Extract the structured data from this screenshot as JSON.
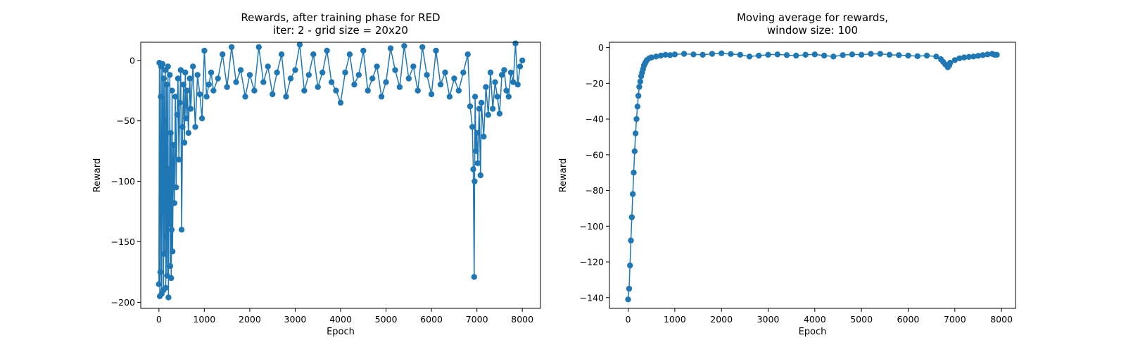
{
  "chart_data": [
    {
      "type": "line",
      "title": "Rewards, after training phase for RED\niter: 2 - grid size = 20x20",
      "title_lines": [
        "Rewards, after training phase for RED",
        "iter: 2 - grid size = 20x20"
      ],
      "xlabel": "Epoch",
      "ylabel": "Reward",
      "xlim": [
        -400,
        8400
      ],
      "ylim": [
        -205,
        15
      ],
      "xticks": [
        0,
        1000,
        2000,
        3000,
        4000,
        5000,
        6000,
        7000,
        8000
      ],
      "yticks": [
        -200,
        -150,
        -100,
        -50,
        0
      ],
      "grid": false,
      "marker": "circle",
      "color": "#1f77b4",
      "series": [
        {
          "values": [
            [
              0,
              -185
            ],
            [
              10,
              -2
            ],
            [
              20,
              -195
            ],
            [
              30,
              -175
            ],
            [
              40,
              -30
            ],
            [
              50,
              -5
            ],
            [
              60,
              -193
            ],
            [
              70,
              -125
            ],
            [
              80,
              -3
            ],
            [
              90,
              -80
            ],
            [
              100,
              -190
            ],
            [
              110,
              -15
            ],
            [
              120,
              -160
            ],
            [
              130,
              -50
            ],
            [
              140,
              -8
            ],
            [
              150,
              -188
            ],
            [
              160,
              -145
            ],
            [
              170,
              -20
            ],
            [
              180,
              -178
            ],
            [
              190,
              -110
            ],
            [
              200,
              -5
            ],
            [
              210,
              -196
            ],
            [
              220,
              -90
            ],
            [
              230,
              -135
            ],
            [
              240,
              -12
            ],
            [
              250,
              -170
            ],
            [
              260,
              -60
            ],
            [
              270,
              -180
            ],
            [
              280,
              -140
            ],
            [
              290,
              -25
            ],
            [
              300,
              -158
            ],
            [
              320,
              -70
            ],
            [
              340,
              -118
            ],
            [
              360,
              -30
            ],
            [
              380,
              -105
            ],
            [
              400,
              -45
            ],
            [
              420,
              -15
            ],
            [
              440,
              -82
            ],
            [
              460,
              -35
            ],
            [
              480,
              -8
            ],
            [
              500,
              -140
            ],
            [
              520,
              -55
            ],
            [
              540,
              -20
            ],
            [
              560,
              -68
            ],
            [
              580,
              -10
            ],
            [
              600,
              -48
            ],
            [
              620,
              -25
            ],
            [
              650,
              -60
            ],
            [
              680,
              -15
            ],
            [
              700,
              -40
            ],
            [
              750,
              -5
            ],
            [
              800,
              -55
            ],
            [
              850,
              -12
            ],
            [
              900,
              -28
            ],
            [
              950,
              -48
            ],
            [
              1000,
              8
            ],
            [
              1050,
              -30
            ],
            [
              1100,
              -20
            ],
            [
              1150,
              -10
            ],
            [
              1200,
              -25
            ],
            [
              1300,
              -15
            ],
            [
              1400,
              5
            ],
            [
              1500,
              -22
            ],
            [
              1600,
              11
            ],
            [
              1700,
              -18
            ],
            [
              1800,
              -8
            ],
            [
              1900,
              -30
            ],
            [
              2000,
              -12
            ],
            [
              2100,
              -25
            ],
            [
              2200,
              11
            ],
            [
              2300,
              -18
            ],
            [
              2400,
              -5
            ],
            [
              2500,
              -28
            ],
            [
              2600,
              -10
            ],
            [
              2700,
              5
            ],
            [
              2800,
              -30
            ],
            [
              2900,
              -15
            ],
            [
              3000,
              -8
            ],
            [
              3100,
              13
            ],
            [
              3200,
              -25
            ],
            [
              3300,
              -12
            ],
            [
              3400,
              5
            ],
            [
              3500,
              -22
            ],
            [
              3600,
              -10
            ],
            [
              3700,
              8
            ],
            [
              3800,
              -18
            ],
            [
              3900,
              -25
            ],
            [
              4000,
              -35
            ],
            [
              4100,
              -10
            ],
            [
              4200,
              5
            ],
            [
              4300,
              -20
            ],
            [
              4400,
              -12
            ],
            [
              4500,
              8
            ],
            [
              4600,
              -25
            ],
            [
              4700,
              -15
            ],
            [
              4800,
              -5
            ],
            [
              4900,
              -30
            ],
            [
              5000,
              -18
            ],
            [
              5100,
              10
            ],
            [
              5200,
              -8
            ],
            [
              5300,
              -22
            ],
            [
              5400,
              12
            ],
            [
              5500,
              -15
            ],
            [
              5600,
              -5
            ],
            [
              5700,
              -25
            ],
            [
              5800,
              11
            ],
            [
              5900,
              -12
            ],
            [
              6000,
              -28
            ],
            [
              6100,
              8
            ],
            [
              6200,
              -20
            ],
            [
              6300,
              -10
            ],
            [
              6400,
              -30
            ],
            [
              6500,
              -15
            ],
            [
              6600,
              -25
            ],
            [
              6700,
              -10
            ],
            [
              6800,
              5
            ],
            [
              6850,
              -38
            ],
            [
              6900,
              -55
            ],
            [
              6920,
              -90
            ],
            [
              6940,
              -179
            ],
            [
              6950,
              -100
            ],
            [
              6960,
              -30
            ],
            [
              6980,
              -75
            ],
            [
              7000,
              -60
            ],
            [
              7020,
              -85
            ],
            [
              7050,
              -40
            ],
            [
              7080,
              -95
            ],
            [
              7100,
              -35
            ],
            [
              7150,
              -63
            ],
            [
              7200,
              -22
            ],
            [
              7250,
              -45
            ],
            [
              7300,
              -10
            ],
            [
              7350,
              -40
            ],
            [
              7400,
              -18
            ],
            [
              7450,
              -30
            ],
            [
              7500,
              -44
            ],
            [
              7550,
              -12
            ],
            [
              7600,
              -8
            ],
            [
              7650,
              -25
            ],
            [
              7700,
              -30
            ],
            [
              7750,
              -10
            ],
            [
              7800,
              -18
            ],
            [
              7850,
              14
            ],
            [
              7900,
              -20
            ],
            [
              7950,
              -5
            ],
            [
              8000,
              0
            ]
          ]
        }
      ]
    },
    {
      "type": "line",
      "title": "Moving average for rewards,\nwindow size: 100",
      "title_lines": [
        "Moving average for rewards,",
        "window size: 100"
      ],
      "xlabel": "Epoch",
      "ylabel": "Reward",
      "xlim": [
        -400,
        8300
      ],
      "ylim": [
        -146,
        3
      ],
      "xticks": [
        0,
        1000,
        2000,
        3000,
        4000,
        5000,
        6000,
        7000,
        8000
      ],
      "yticks": [
        -140,
        -120,
        -100,
        -80,
        -60,
        -40,
        -20,
        0
      ],
      "grid": false,
      "marker": "circle",
      "color": "#1f77b4",
      "series": [
        {
          "values": [
            [
              0,
              -141
            ],
            [
              20,
              -135
            ],
            [
              40,
              -122
            ],
            [
              60,
              -108
            ],
            [
              80,
              -95
            ],
            [
              100,
              -82
            ],
            [
              120,
              -70
            ],
            [
              140,
              -58
            ],
            [
              160,
              -48
            ],
            [
              180,
              -40
            ],
            [
              200,
              -33
            ],
            [
              220,
              -27
            ],
            [
              240,
              -22
            ],
            [
              260,
              -19
            ],
            [
              280,
              -16
            ],
            [
              300,
              -14
            ],
            [
              320,
              -12
            ],
            [
              340,
              -10
            ],
            [
              360,
              -9
            ],
            [
              380,
              -8
            ],
            [
              400,
              -7
            ],
            [
              450,
              -6
            ],
            [
              500,
              -5.5
            ],
            [
              600,
              -5
            ],
            [
              700,
              -4.5
            ],
            [
              800,
              -4
            ],
            [
              900,
              -4.2
            ],
            [
              1000,
              -3.8
            ],
            [
              1200,
              -3.5
            ],
            [
              1400,
              -3.8
            ],
            [
              1600,
              -4
            ],
            [
              1800,
              -3.5
            ],
            [
              2000,
              -3.2
            ],
            [
              2200,
              -3.6
            ],
            [
              2400,
              -4
            ],
            [
              2600,
              -5
            ],
            [
              2800,
              -4.5
            ],
            [
              3000,
              -4
            ],
            [
              3200,
              -3.8
            ],
            [
              3400,
              -4.2
            ],
            [
              3600,
              -4.5
            ],
            [
              3800,
              -4
            ],
            [
              4000,
              -3.8
            ],
            [
              4200,
              -4.5
            ],
            [
              4400,
              -5
            ],
            [
              4600,
              -4.2
            ],
            [
              4800,
              -3.8
            ],
            [
              5000,
              -4
            ],
            [
              5200,
              -3.5
            ],
            [
              5400,
              -3.5
            ],
            [
              5600,
              -4
            ],
            [
              5800,
              -4.2
            ],
            [
              6000,
              -4.5
            ],
            [
              6200,
              -4.8
            ],
            [
              6400,
              -4.5
            ],
            [
              6600,
              -5
            ],
            [
              6700,
              -6.5
            ],
            [
              6750,
              -8
            ],
            [
              6800,
              -9.5
            ],
            [
              6850,
              -11
            ],
            [
              6880,
              -10
            ],
            [
              6900,
              -8.5
            ],
            [
              7000,
              -7
            ],
            [
              7100,
              -6
            ],
            [
              7200,
              -5.5
            ],
            [
              7300,
              -5.2
            ],
            [
              7400,
              -5
            ],
            [
              7500,
              -4.6
            ],
            [
              7600,
              -4.2
            ],
            [
              7700,
              -3.8
            ],
            [
              7800,
              -3.5
            ],
            [
              7850,
              -4
            ],
            [
              7900,
              -4
            ]
          ]
        }
      ]
    }
  ]
}
